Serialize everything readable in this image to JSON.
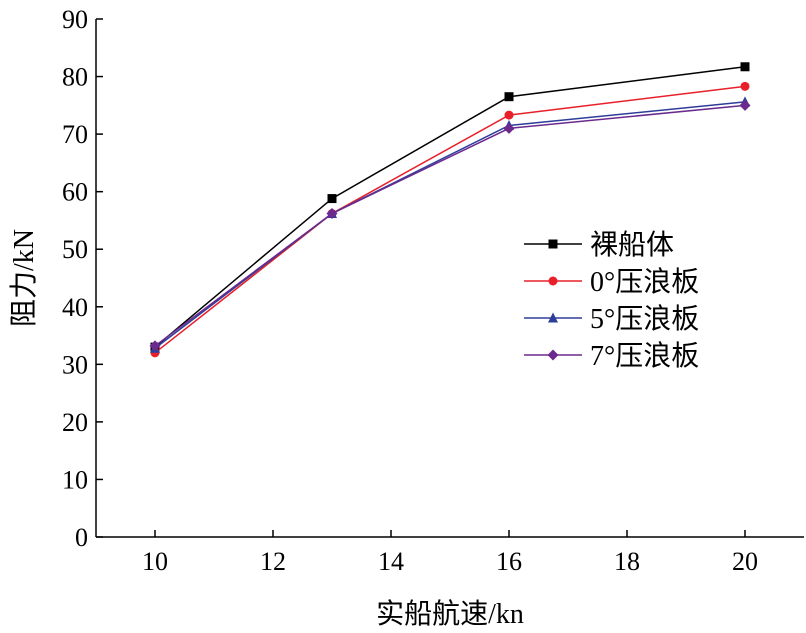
{
  "chart_data": {
    "type": "line",
    "title": "",
    "xlabel": "实船航速/kn",
    "ylabel": "阻力/kN",
    "x": [
      10,
      13,
      16,
      20
    ],
    "xlim": [
      9,
      21
    ],
    "ylim": [
      0,
      90
    ],
    "xticks": [
      10,
      12,
      14,
      16,
      18,
      20
    ],
    "yticks": [
      0,
      10,
      20,
      30,
      40,
      50,
      60,
      70,
      80,
      90
    ],
    "grid": false,
    "legend_position": "right",
    "series": [
      {
        "name": "裸船体",
        "values": [
          33.0,
          58.8,
          76.5,
          81.7
        ],
        "color": "#000000",
        "marker": "square"
      },
      {
        "name": "0°压浪板",
        "values": [
          32.0,
          56.2,
          73.3,
          78.3
        ],
        "color": "#e8202a",
        "marker": "circle"
      },
      {
        "name": "5°压浪板",
        "values": [
          32.8,
          56.2,
          71.5,
          75.6
        ],
        "color": "#2e3d9a",
        "marker": "triangle"
      },
      {
        "name": "7°压浪板",
        "values": [
          33.2,
          56.2,
          71.0,
          75.0
        ],
        "color": "#6a2a8e",
        "marker": "diamond"
      }
    ]
  }
}
